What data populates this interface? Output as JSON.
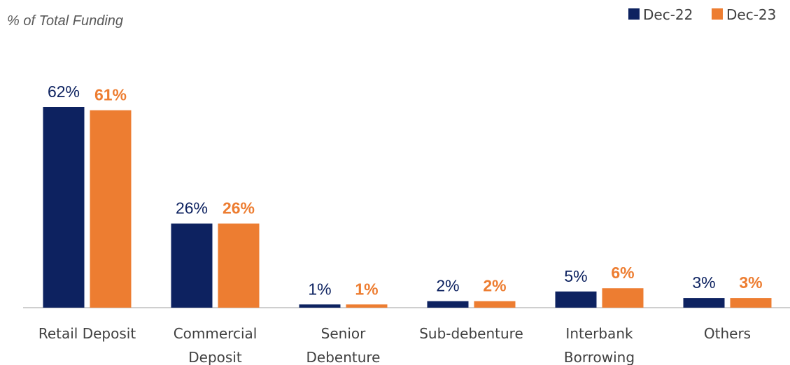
{
  "chart_data": {
    "type": "bar",
    "subtitle": "% of Total Funding",
    "categories": [
      [
        "Retail Deposit"
      ],
      [
        "Commercial",
        "Deposit"
      ],
      [
        "Senior",
        "Debenture"
      ],
      [
        "Sub-debenture"
      ],
      [
        "Interbank",
        "Borrowing"
      ],
      [
        "Others"
      ]
    ],
    "series": [
      {
        "name": "Dec-22",
        "color": "#0d2260",
        "values": [
          62,
          26,
          1,
          2,
          5,
          3
        ],
        "labels": [
          "62%",
          "26%",
          "1%",
          "2%",
          "5%",
          "3%"
        ]
      },
      {
        "name": "Dec-23",
        "color": "#ed7d31",
        "values": [
          61,
          26,
          1,
          2,
          6,
          3
        ],
        "labels": [
          "61%",
          "26%",
          "1%",
          "2%",
          "6%",
          "3%"
        ]
      }
    ],
    "ylim": [
      0,
      62
    ],
    "grid": false,
    "legend_position": "top-right"
  }
}
